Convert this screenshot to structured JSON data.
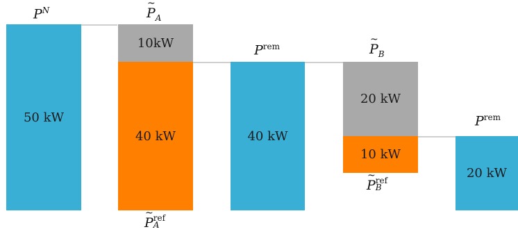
{
  "bars": {
    "b1_value": "50 kW",
    "b2_top_value": "10kW",
    "b2_bottom_value": "40 kW",
    "b3_value": "40 kW",
    "b4_top_value": "20 kW",
    "b4_bottom_value": "10 kW",
    "b5_value": "20 kW"
  },
  "labels": {
    "p_n": {
      "base": "P",
      "sup": "N"
    },
    "p_a": {
      "base": "P",
      "sub": "A"
    },
    "p_a_ref": {
      "base": "P",
      "sup": "ref",
      "sub": "A"
    },
    "p_rem_1": {
      "base": "P",
      "sup": "rem"
    },
    "p_b": {
      "base": "P",
      "sub": "B"
    },
    "p_b_ref": {
      "base": "P",
      "sup": "ref",
      "sub": "B"
    },
    "p_rem_2": {
      "base": "P",
      "sup": "rem"
    }
  },
  "colors": {
    "blue": "#3aafd6",
    "gray": "#a9a9a9",
    "orange": "#ff7f00",
    "connector": "#cfcfcf"
  }
}
